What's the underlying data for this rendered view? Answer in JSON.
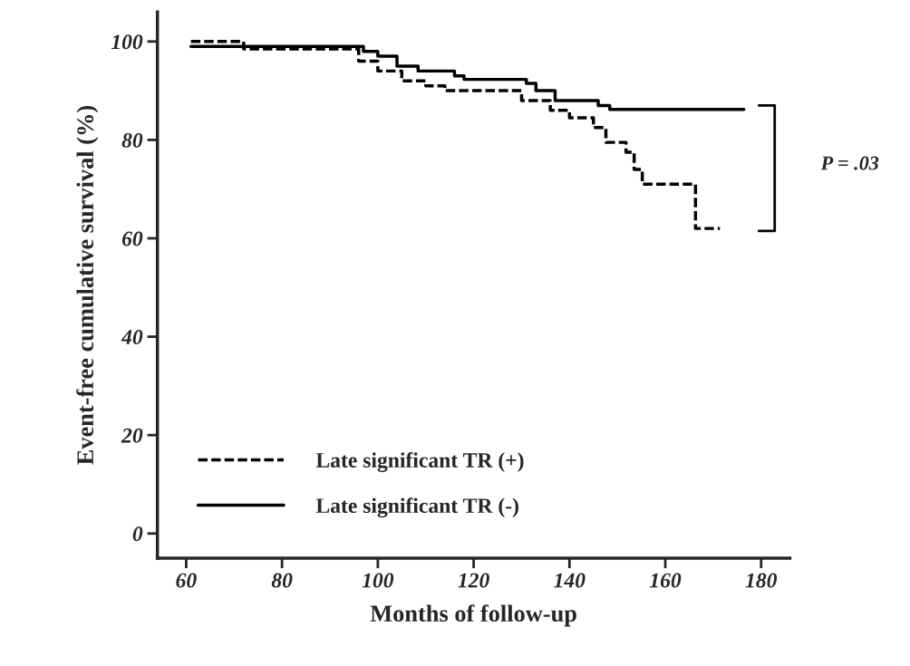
{
  "chart_data": {
    "type": "step",
    "xlabel": "Months of follow-up",
    "ylabel": "Event-free cumulative survival (%)",
    "series": [
      {
        "name": "Late significant TR (+)",
        "color": "#000000",
        "line_style": "dashed",
        "x": [
          61,
          72,
          96,
          100,
          105,
          110,
          114,
          130,
          136,
          140,
          145,
          147.6,
          151.8,
          153.5,
          155.2,
          166.3,
          171.4
        ],
        "values": [
          100,
          98.5,
          96,
          94,
          92,
          91,
          90,
          88,
          86,
          84.5,
          82.5,
          79.5,
          77.5,
          74,
          71,
          62,
          62
        ]
      },
      {
        "name": "Late significant TR (-)",
        "color": "#000000",
        "line_style": "solid",
        "x": [
          61,
          97,
          100,
          104,
          108.4,
          116,
          118,
          131,
          133,
          137,
          146,
          148.4,
          176.4
        ],
        "values": [
          99,
          98,
          97,
          95,
          94,
          93,
          92.3,
          91.5,
          90,
          88,
          87,
          86.2,
          86.2
        ]
      }
    ],
    "xlim": [
      54,
      186
    ],
    "xticks": [
      60,
      80,
      100,
      120,
      140,
      160,
      180
    ],
    "ylim": [
      -5,
      106
    ],
    "yticks": [
      0,
      20,
      40,
      60,
      80,
      100
    ],
    "legend": "bottom left",
    "grid": false,
    "annotations": [
      "P = .03"
    ]
  }
}
